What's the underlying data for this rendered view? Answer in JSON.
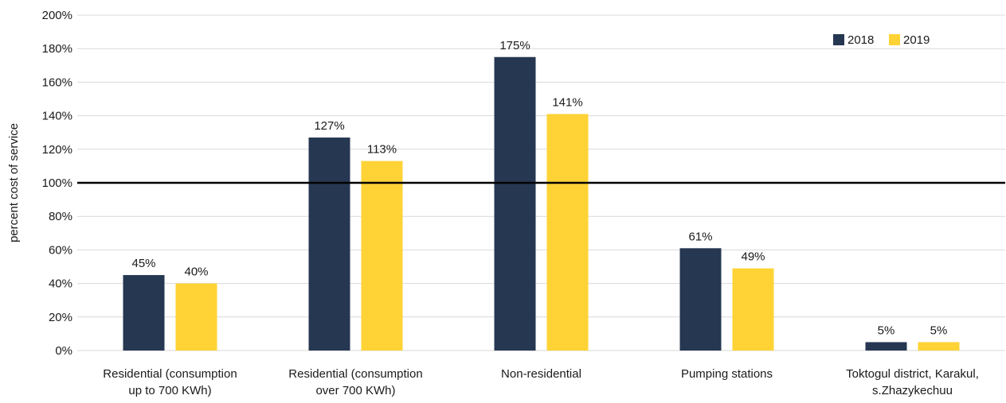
{
  "chart_data": {
    "type": "bar",
    "ylabel": "percent cost of service",
    "ylim": [
      0,
      200
    ],
    "ytick_step": 20,
    "ytick_suffix": "%",
    "reference_line": 100,
    "grid": "horizontal",
    "legend_position": "top-right",
    "categories": [
      [
        "Residential (consumption",
        "up to 700 KWh)"
      ],
      [
        "Residential (consumption",
        "over 700 KWh)"
      ],
      [
        "Non-residential"
      ],
      [
        "Pumping stations"
      ],
      [
        "Toktogul district, Karakul,",
        "s.Zhazykechuu"
      ]
    ],
    "series": [
      {
        "name": "2018",
        "color": "#263752",
        "values": [
          45,
          127,
          175,
          61,
          5
        ],
        "labels": [
          "45%",
          "127%",
          "175%",
          "61%",
          "5%"
        ]
      },
      {
        "name": "2019",
        "color": "#FFD335",
        "values": [
          40,
          113,
          141,
          49,
          5
        ],
        "labels": [
          "40%",
          "113%",
          "141%",
          "49%",
          "5%"
        ]
      }
    ]
  }
}
